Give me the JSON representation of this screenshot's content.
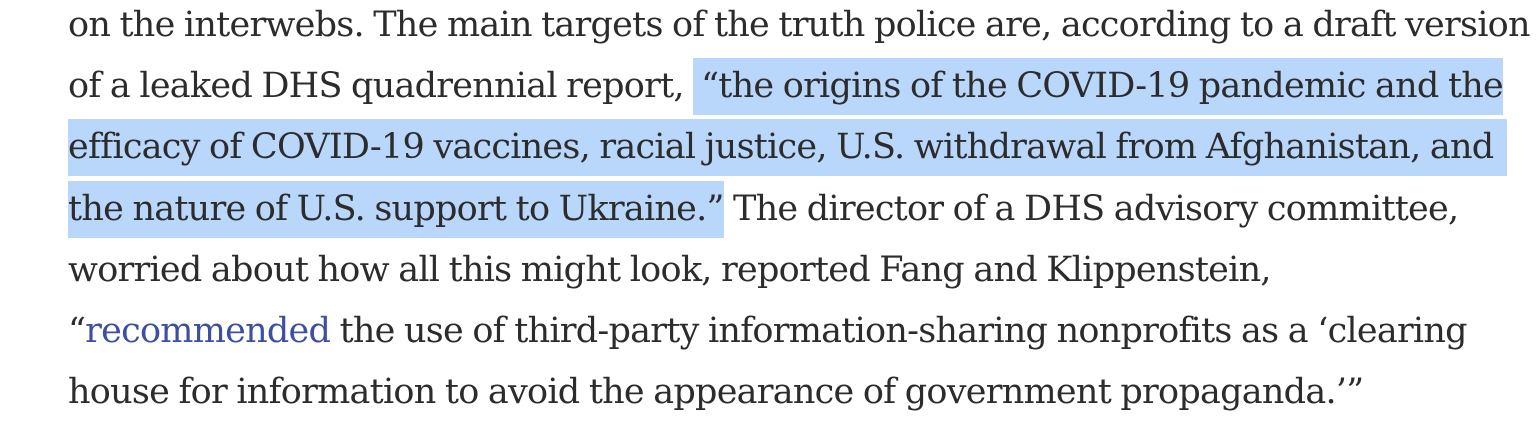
{
  "paragraph": {
    "line1": "on the interwebs. The main targets of the truth police are, according to a draft version",
    "line2_plain": "of a leaked DHS quadrennial report, ",
    "line2_highlight": "“the origins of the COVID-19 pandemic and the",
    "line3_highlight": "efficacy of COVID-19 vaccines, racial justice, U.S. withdrawal from Afghanistan, and",
    "line4_highlight": "the nature of U.S. support to Ukraine.”",
    "line4_plain": " The director of a DHS advisory committee,",
    "line5": "worried about how all this might look, reported Fang and Klippenstein,",
    "line6_open_quote": "“",
    "link_text": "recommended",
    "line6_rest": " the use of third-party information-sharing nonprofits as a ‘clearing",
    "line7": "house for information to avoid the appearance of government propaganda.’”"
  },
  "colors": {
    "text": "#2c2c2c",
    "highlight": "#b9d6fb",
    "link": "#3d4fa3",
    "background": "#ffffff"
  }
}
